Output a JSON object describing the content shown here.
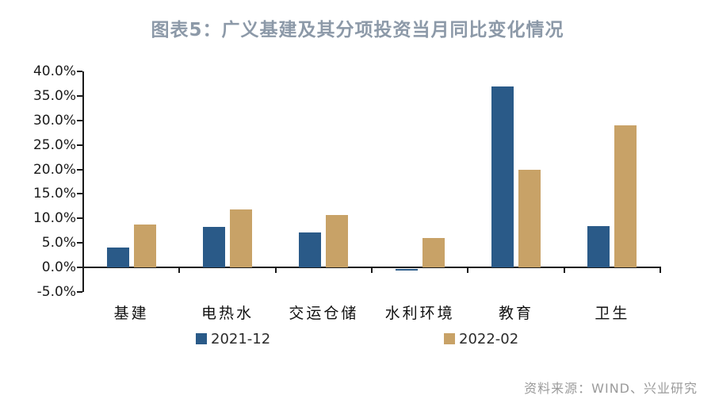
{
  "title": {
    "text": "图表5：广义基建及其分项投资当月同比变化情况",
    "color": "#8C99A8"
  },
  "source": "资料来源：WIND、兴业研究",
  "chart_data": {
    "type": "bar",
    "title": "图表5：广义基建及其分项投资当月同比变化情况",
    "categories": [
      "基建",
      "电热水",
      "交运仓储",
      "水利环境",
      "教育",
      "卫生"
    ],
    "series": [
      {
        "name": "2021-12",
        "color": "#2A5A88",
        "values": [
          4.0,
          8.2,
          7.1,
          -0.3,
          37.0,
          8.4
        ]
      },
      {
        "name": "2022-02",
        "color": "#C8A267",
        "values": [
          8.8,
          11.9,
          10.7,
          6.0,
          19.9,
          29.0
        ]
      }
    ],
    "ylabel": "",
    "xlabel": "",
    "ylim": [
      -5,
      40
    ],
    "ytick_step": 5,
    "ytick_labels": [
      "40.0%",
      "35.0%",
      "30.0%",
      "25.0%",
      "20.0%",
      "15.0%",
      "10.0%",
      "5.0%",
      "0.0%",
      "-5.0%"
    ],
    "grid": false,
    "legend_position": "bottom"
  }
}
